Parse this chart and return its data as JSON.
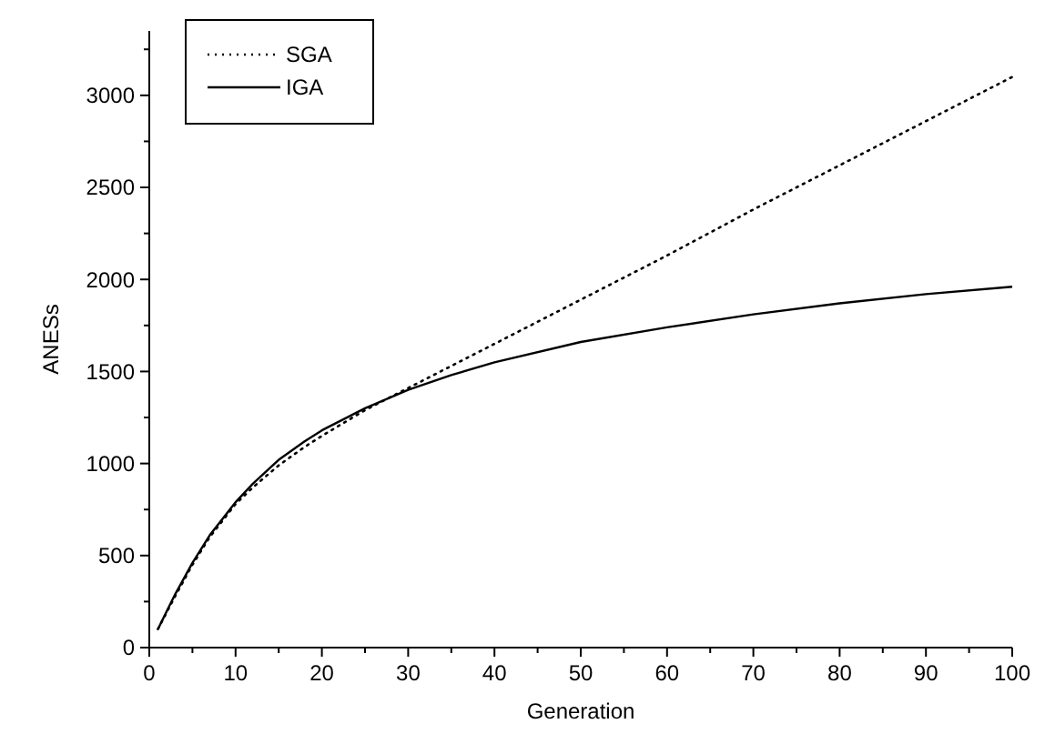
{
  "chart_data": {
    "type": "line",
    "xlabel": "Generation",
    "ylabel": "ANESs",
    "xlim": [
      0,
      100
    ],
    "ylim": [
      0,
      3350
    ],
    "xticks": [
      0,
      10,
      20,
      30,
      40,
      50,
      60,
      70,
      80,
      90,
      100
    ],
    "yticks": [
      0,
      500,
      1000,
      1500,
      2000,
      2500,
      3000
    ],
    "legend": "top left",
    "grid": false,
    "series": [
      {
        "name": "SGA",
        "color": "#000000",
        "line_style": "dotted",
        "x": [
          1,
          3,
          5,
          7,
          10,
          12,
          15,
          18,
          20,
          25,
          30,
          40,
          50,
          60,
          70,
          80,
          90,
          100
        ],
        "values": [
          100,
          280,
          450,
          600,
          780,
          870,
          990,
          1090,
          1150,
          1290,
          1410,
          1650,
          1890,
          2130,
          2380,
          2620,
          2860,
          3100
        ]
      },
      {
        "name": "IGA",
        "color": "#000000",
        "line_style": "solid",
        "x": [
          1,
          3,
          5,
          7,
          10,
          12,
          15,
          18,
          20,
          25,
          30,
          35,
          40,
          50,
          60,
          70,
          80,
          90,
          100
        ],
        "values": [
          100,
          290,
          460,
          610,
          790,
          890,
          1020,
          1120,
          1180,
          1300,
          1400,
          1480,
          1550,
          1660,
          1740,
          1810,
          1870,
          1920,
          1960
        ]
      }
    ]
  }
}
